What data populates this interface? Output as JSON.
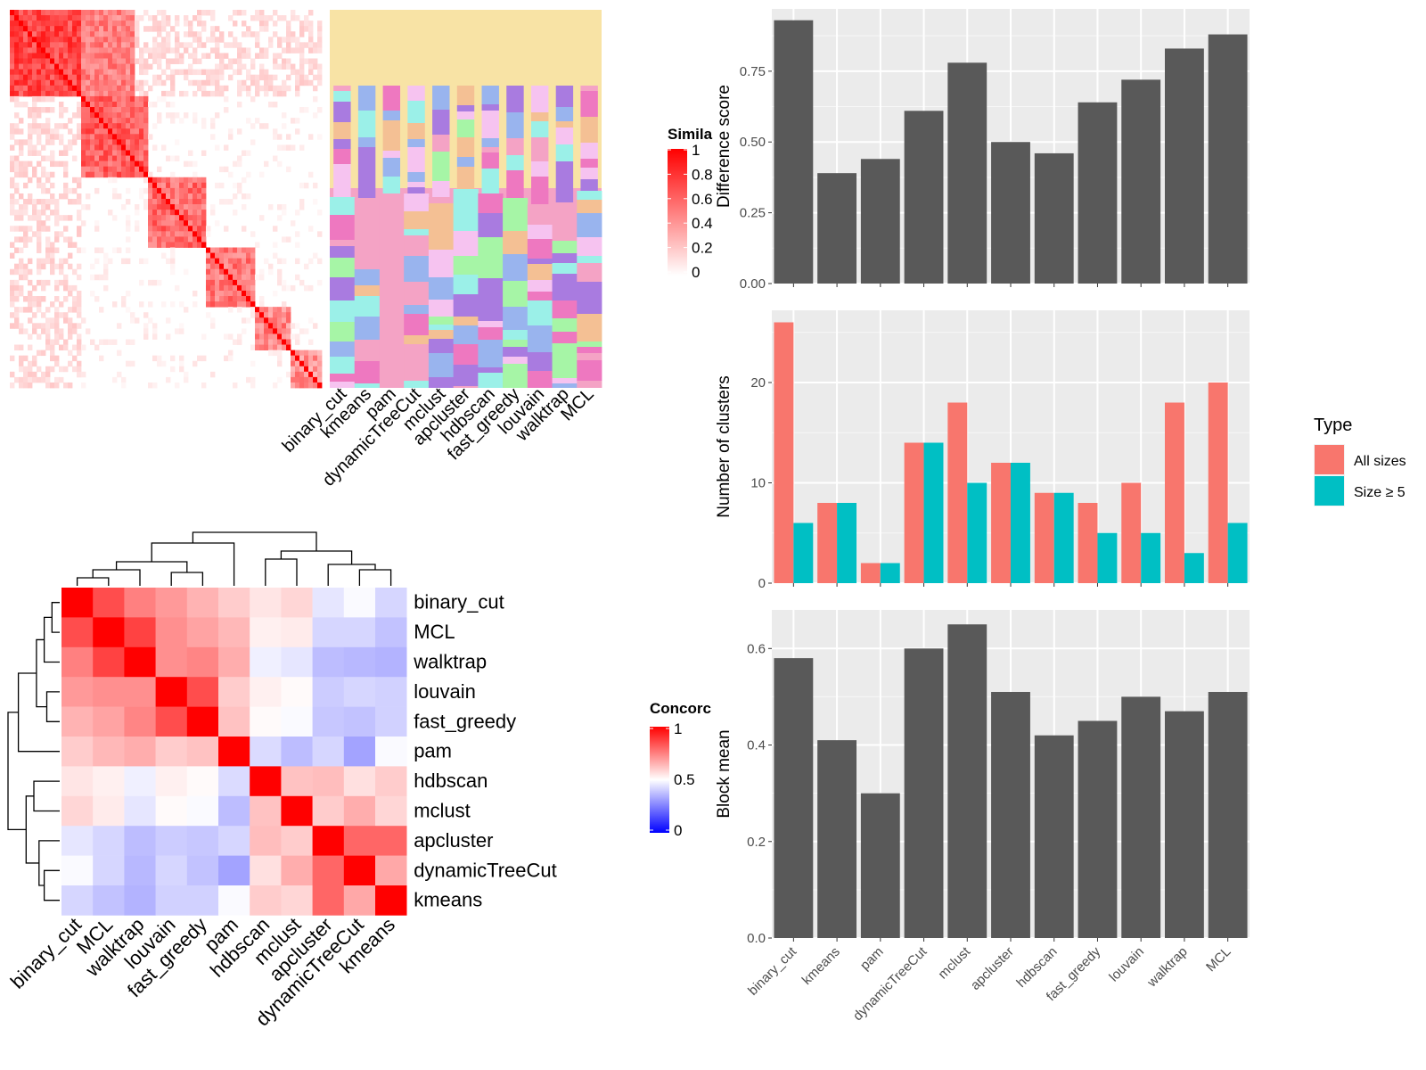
{
  "method_labels": [
    "binary_cut",
    "kmeans",
    "pam",
    "dynamicTreeCut",
    "mclust",
    "apcluster",
    "hdbscan",
    "fast_greedy",
    "louvain",
    "walktrap",
    "MCL"
  ],
  "concordance_order": [
    "binary_cut",
    "MCL",
    "walktrap",
    "louvain",
    "fast_greedy",
    "pam",
    "hdbscan",
    "mclust",
    "apcluster",
    "dynamicTreeCut",
    "kmeans"
  ],
  "similarity_legend": {
    "title": "Simila",
    "ticks": [
      "1",
      "0.8",
      "0.6",
      "0.4",
      "0.2",
      "0"
    ]
  },
  "concordance_legend": {
    "title": "Concorc",
    "ticks": [
      "1",
      "0.5",
      "0"
    ]
  },
  "type_legend": {
    "title": "Type",
    "entries": [
      {
        "label": "All sizes",
        "color": "#F8766D"
      },
      {
        "label": "Size ≥ 5",
        "color": "#00BFC4"
      }
    ]
  },
  "colors": {
    "bar": "#595959",
    "panel": "#EBEBEB",
    "heat_high": "#FF0000",
    "heat_mid": "#FFFFFF",
    "heat_low": "#0000FF"
  },
  "chart_data": [
    {
      "type": "heatmap",
      "name": "similarity_matrix",
      "colorscale": {
        "min": 0,
        "max": 1,
        "low": "#FFFFFF",
        "high": "#FF0000"
      },
      "legend_title": "Simila"
    },
    {
      "type": "heatmap",
      "name": "cluster_assignment",
      "categories": [
        "binary_cut",
        "kmeans",
        "pam",
        "dynamicTreeCut",
        "mclust",
        "apcluster",
        "hdbscan",
        "fast_greedy",
        "louvain",
        "walktrap",
        "MCL"
      ]
    },
    {
      "type": "heatmap",
      "name": "concordance",
      "legend_title": "Concorc",
      "colorscale": {
        "min": 0,
        "mid": 0.5,
        "max": 1
      },
      "rows": [
        "binary_cut",
        "MCL",
        "walktrap",
        "louvain",
        "fast_greedy",
        "pam",
        "hdbscan",
        "mclust",
        "apcluster",
        "dynamicTreeCut",
        "kmeans"
      ],
      "columns": [
        "binary_cut",
        "MCL",
        "walktrap",
        "louvain",
        "fast_greedy",
        "pam",
        "hdbscan",
        "mclust",
        "apcluster",
        "dynamicTreeCut",
        "kmeans"
      ],
      "values": [
        [
          1.0,
          0.85,
          0.75,
          0.7,
          0.65,
          0.6,
          0.55,
          0.58,
          0.45,
          0.49,
          0.42
        ],
        [
          0.85,
          1.0,
          0.87,
          0.72,
          0.68,
          0.64,
          0.53,
          0.54,
          0.42,
          0.42,
          0.38
        ],
        [
          0.75,
          0.87,
          1.0,
          0.72,
          0.74,
          0.66,
          0.47,
          0.45,
          0.37,
          0.36,
          0.35
        ],
        [
          0.7,
          0.72,
          0.72,
          1.0,
          0.85,
          0.6,
          0.53,
          0.51,
          0.4,
          0.42,
          0.41
        ],
        [
          0.65,
          0.68,
          0.74,
          0.85,
          1.0,
          0.62,
          0.51,
          0.49,
          0.39,
          0.38,
          0.41
        ],
        [
          0.6,
          0.64,
          0.66,
          0.6,
          0.62,
          1.0,
          0.43,
          0.37,
          0.42,
          0.32,
          0.49
        ],
        [
          0.55,
          0.53,
          0.47,
          0.53,
          0.51,
          0.43,
          1.0,
          0.62,
          0.63,
          0.56,
          0.6
        ],
        [
          0.58,
          0.54,
          0.45,
          0.51,
          0.49,
          0.37,
          0.62,
          1.0,
          0.6,
          0.66,
          0.58
        ],
        [
          0.45,
          0.42,
          0.37,
          0.4,
          0.39,
          0.42,
          0.63,
          0.6,
          1.0,
          0.8,
          0.8
        ],
        [
          0.49,
          0.42,
          0.36,
          0.42,
          0.38,
          0.32,
          0.56,
          0.66,
          0.8,
          1.0,
          0.67
        ],
        [
          0.42,
          0.38,
          0.35,
          0.41,
          0.41,
          0.49,
          0.6,
          0.58,
          0.8,
          0.67,
          1.0
        ]
      ]
    },
    {
      "type": "bar",
      "name": "difference_score",
      "categories": [
        "binary_cut",
        "kmeans",
        "pam",
        "dynamicTreeCut",
        "mclust",
        "apcluster",
        "hdbscan",
        "fast_greedy",
        "louvain",
        "walktrap",
        "MCL"
      ],
      "values": [
        0.93,
        0.39,
        0.44,
        0.61,
        0.78,
        0.5,
        0.46,
        0.64,
        0.72,
        0.83,
        0.88
      ],
      "ylabel": "Difference score",
      "ylim": [
        0,
        0.97
      ],
      "yticks": [
        "0.00",
        "0.25",
        "0.50",
        "0.75"
      ],
      "grid": true
    },
    {
      "type": "bar",
      "name": "number_of_clusters",
      "categories": [
        "binary_cut",
        "kmeans",
        "pam",
        "dynamicTreeCut",
        "mclust",
        "apcluster",
        "hdbscan",
        "fast_greedy",
        "louvain",
        "walktrap",
        "MCL"
      ],
      "series": [
        {
          "name": "All sizes",
          "values": [
            26,
            8,
            2,
            14,
            18,
            12,
            9,
            8,
            10,
            18,
            20
          ]
        },
        {
          "name": "Size ≥ 5",
          "values": [
            6,
            8,
            2,
            14,
            10,
            12,
            9,
            5,
            5,
            3,
            6
          ]
        }
      ],
      "ylabel": "Number of clusters",
      "ylim": [
        0,
        27.2
      ],
      "yticks": [
        "0",
        "10",
        "20"
      ],
      "grid": true,
      "legend": "right"
    },
    {
      "type": "bar",
      "name": "block_mean",
      "categories": [
        "binary_cut",
        "kmeans",
        "pam",
        "dynamicTreeCut",
        "mclust",
        "apcluster",
        "hdbscan",
        "fast_greedy",
        "louvain",
        "walktrap",
        "MCL"
      ],
      "values": [
        0.58,
        0.41,
        0.3,
        0.6,
        0.65,
        0.51,
        0.42,
        0.45,
        0.5,
        0.47,
        0.51
      ],
      "ylabel": "Block mean",
      "ylim": [
        0,
        0.68
      ],
      "yticks": [
        "0.0",
        "0.2",
        "0.4",
        "0.6"
      ],
      "grid": true
    }
  ]
}
